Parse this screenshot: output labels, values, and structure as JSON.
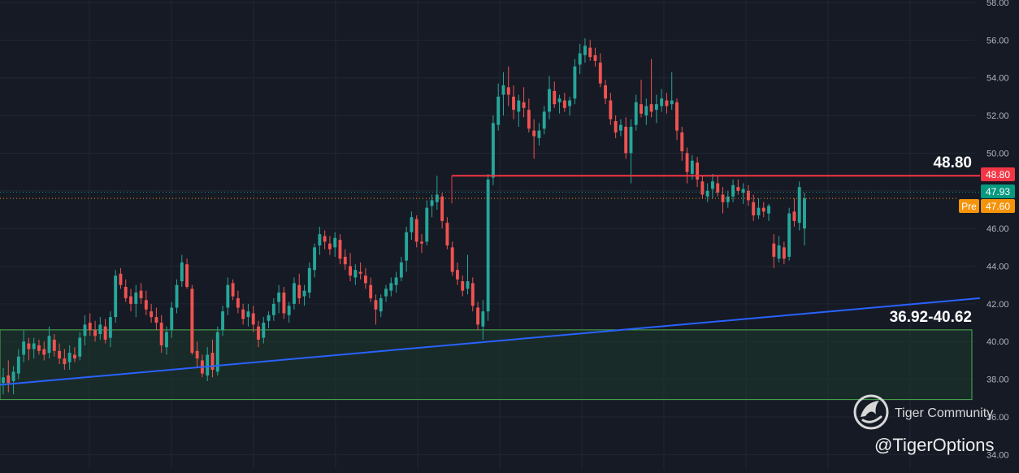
{
  "chart_data": {
    "type": "candlestick",
    "y_axis": {
      "ticks": [
        "34.00",
        "36.00",
        "38.00",
        "40.00",
        "42.00",
        "44.00",
        "46.00",
        "48.00",
        "50.00",
        "52.00",
        "54.00",
        "56.00",
        "58.00"
      ],
      "min": 34,
      "max": 58,
      "position": "right"
    },
    "grid": true,
    "price_labels": {
      "resistance": "48.80",
      "last": "47.93",
      "premarket_tag": "Pre",
      "premarket": "47.60"
    },
    "annotations": {
      "resistance_label": "48.80",
      "support_zone_label": "36.92-40.62"
    },
    "resistance_level": 48.8,
    "support_zone": [
      36.92,
      40.62
    ],
    "trendline": {
      "start_price": 37.7,
      "end_price": 42.3
    },
    "candles": [
      [
        37.8,
        38.6,
        37.2,
        38.1
      ],
      [
        38.2,
        39.0,
        37.3,
        37.8
      ],
      [
        37.9,
        38.7,
        37.2,
        38.4
      ],
      [
        38.3,
        39.6,
        38.0,
        39.2
      ],
      [
        39.3,
        40.6,
        38.9,
        40.0
      ],
      [
        39.9,
        40.2,
        39.0,
        39.6
      ],
      [
        39.6,
        40.2,
        39.1,
        39.9
      ],
      [
        39.8,
        40.1,
        39.3,
        39.5
      ],
      [
        39.6,
        40.0,
        39.0,
        39.3
      ],
      [
        39.4,
        40.8,
        39.1,
        40.3
      ],
      [
        40.1,
        40.4,
        39.2,
        39.5
      ],
      [
        39.5,
        39.9,
        38.8,
        39.1
      ],
      [
        39.1,
        39.6,
        38.5,
        38.8
      ],
      [
        38.9,
        39.8,
        38.5,
        39.4
      ],
      [
        39.3,
        39.7,
        38.9,
        39.1
      ],
      [
        39.2,
        40.5,
        39.0,
        40.2
      ],
      [
        40.3,
        41.4,
        39.8,
        40.9
      ],
      [
        41.0,
        41.5,
        40.3,
        40.6
      ],
      [
        40.6,
        41.1,
        40.0,
        40.3
      ],
      [
        40.4,
        41.3,
        40.1,
        40.9
      ],
      [
        40.8,
        41.2,
        39.9,
        40.1
      ],
      [
        40.2,
        41.6,
        39.7,
        41.3
      ],
      [
        41.3,
        43.8,
        41.0,
        43.5
      ],
      [
        43.6,
        43.9,
        42.8,
        43.0
      ],
      [
        42.9,
        43.3,
        42.1,
        42.3
      ],
      [
        42.4,
        42.8,
        41.6,
        42.0
      ],
      [
        42.0,
        43.0,
        41.3,
        42.6
      ],
      [
        42.7,
        43.1,
        42.0,
        42.3
      ],
      [
        42.2,
        42.7,
        41.4,
        41.7
      ],
      [
        41.6,
        42.0,
        41.0,
        41.3
      ],
      [
        41.3,
        41.8,
        40.6,
        41.0
      ],
      [
        41.0,
        41.4,
        39.4,
        39.8
      ],
      [
        39.7,
        40.8,
        39.3,
        40.5
      ],
      [
        40.6,
        42.1,
        40.2,
        41.8
      ],
      [
        41.8,
        43.3,
        41.5,
        43.0
      ],
      [
        43.2,
        44.6,
        42.9,
        44.2
      ],
      [
        44.1,
        44.4,
        42.8,
        42.9
      ],
      [
        42.8,
        43.0,
        39.3,
        39.4
      ],
      [
        39.5,
        40.0,
        38.6,
        39.1
      ],
      [
        39.0,
        39.3,
        38.1,
        38.3
      ],
      [
        38.2,
        39.7,
        37.9,
        39.3
      ],
      [
        39.4,
        40.1,
        38.1,
        38.5
      ],
      [
        38.4,
        40.8,
        38.2,
        40.5
      ],
      [
        40.6,
        41.9,
        40.3,
        41.6
      ],
      [
        41.8,
        43.4,
        41.4,
        43.0
      ],
      [
        43.1,
        43.3,
        42.2,
        42.4
      ],
      [
        42.3,
        42.7,
        41.5,
        41.8
      ],
      [
        41.7,
        42.0,
        40.9,
        41.2
      ],
      [
        41.3,
        42.0,
        40.8,
        41.6
      ],
      [
        41.5,
        41.9,
        40.5,
        40.9
      ],
      [
        40.8,
        41.1,
        39.7,
        40.1
      ],
      [
        40.2,
        41.3,
        39.9,
        41.0
      ],
      [
        41.1,
        41.6,
        40.7,
        41.4
      ],
      [
        41.4,
        42.3,
        41.1,
        42.0
      ],
      [
        42.1,
        43.0,
        41.5,
        42.6
      ],
      [
        42.6,
        42.9,
        41.2,
        41.5
      ],
      [
        41.4,
        42.1,
        41.0,
        41.9
      ],
      [
        42.0,
        43.4,
        41.7,
        43.1
      ],
      [
        43.0,
        43.6,
        42.0,
        42.3
      ],
      [
        42.4,
        43.0,
        41.9,
        42.7
      ],
      [
        42.6,
        44.2,
        42.3,
        43.9
      ],
      [
        43.8,
        45.2,
        43.4,
        45.0
      ],
      [
        45.1,
        46.1,
        44.6,
        45.7
      ],
      [
        45.6,
        45.9,
        44.9,
        45.3
      ],
      [
        45.2,
        45.6,
        44.6,
        44.9
      ],
      [
        45.0,
        45.8,
        44.5,
        45.5
      ],
      [
        45.4,
        45.7,
        44.1,
        44.4
      ],
      [
        44.5,
        44.9,
        43.8,
        44.1
      ],
      [
        44.0,
        44.7,
        43.2,
        43.5
      ],
      [
        43.4,
        44.1,
        43.0,
        43.8
      ],
      [
        43.7,
        44.2,
        43.3,
        43.6
      ],
      [
        43.5,
        43.9,
        42.8,
        43.1
      ],
      [
        43.0,
        43.4,
        42.1,
        42.3
      ],
      [
        42.2,
        42.5,
        40.9,
        41.7
      ],
      [
        41.6,
        42.5,
        41.3,
        42.3
      ],
      [
        42.4,
        43.0,
        42.1,
        42.8
      ],
      [
        42.7,
        43.4,
        42.4,
        43.1
      ],
      [
        43.0,
        43.7,
        42.6,
        43.4
      ],
      [
        43.4,
        44.5,
        43.2,
        44.2
      ],
      [
        44.3,
        46.1,
        43.7,
        45.8
      ],
      [
        45.8,
        46.9,
        45.4,
        46.6
      ],
      [
        46.5,
        46.7,
        45.0,
        45.3
      ],
      [
        45.3,
        45.7,
        44.7,
        45.2
      ],
      [
        45.3,
        47.5,
        45.1,
        47.1
      ],
      [
        47.2,
        47.8,
        46.6,
        47.5
      ],
      [
        47.4,
        48.8,
        47.0,
        47.8
      ],
      [
        47.7,
        47.9,
        46.0,
        46.4
      ],
      [
        46.3,
        46.6,
        44.9,
        45.1
      ],
      [
        45.0,
        45.3,
        43.5,
        43.7
      ],
      [
        43.8,
        44.2,
        43.0,
        43.3
      ],
      [
        43.2,
        43.5,
        42.4,
        42.7
      ],
      [
        42.8,
        44.6,
        42.5,
        43.2
      ],
      [
        43.1,
        43.4,
        41.6,
        41.9
      ],
      [
        41.8,
        42.1,
        40.6,
        40.9
      ],
      [
        40.8,
        42.2,
        40.1,
        41.6
      ],
      [
        41.6,
        48.9,
        41.1,
        48.6
      ],
      [
        48.7,
        52.0,
        48.3,
        51.6
      ],
      [
        51.5,
        53.7,
        51.2,
        53.0
      ],
      [
        53.1,
        54.3,
        52.0,
        53.6
      ],
      [
        53.5,
        54.6,
        52.5,
        53.1
      ],
      [
        53.0,
        53.6,
        51.8,
        52.3
      ],
      [
        52.2,
        53.1,
        51.4,
        52.8
      ],
      [
        52.7,
        53.5,
        51.9,
        52.4
      ],
      [
        52.3,
        52.9,
        51.1,
        51.3
      ],
      [
        51.2,
        51.8,
        49.7,
        50.9
      ],
      [
        50.8,
        51.6,
        50.4,
        51.2
      ],
      [
        51.3,
        52.5,
        51.0,
        52.2
      ],
      [
        52.2,
        54.1,
        51.8,
        53.4
      ],
      [
        53.3,
        53.8,
        52.4,
        52.6
      ],
      [
        52.7,
        53.1,
        52.1,
        52.9
      ],
      [
        52.8,
        53.2,
        52.2,
        52.4
      ],
      [
        52.5,
        53.0,
        52.0,
        52.8
      ],
      [
        52.9,
        55.0,
        52.6,
        54.6
      ],
      [
        54.7,
        55.8,
        54.2,
        55.3
      ],
      [
        55.2,
        56.1,
        54.8,
        55.7
      ],
      [
        55.6,
        56.0,
        54.9,
        55.1
      ],
      [
        55.2,
        55.6,
        54.6,
        54.9
      ],
      [
        54.8,
        55.3,
        53.5,
        53.7
      ],
      [
        53.6,
        53.9,
        52.6,
        52.9
      ],
      [
        52.8,
        53.2,
        51.5,
        51.8
      ],
      [
        51.7,
        52.0,
        50.8,
        51.1
      ],
      [
        51.2,
        51.8,
        50.9,
        51.5
      ],
      [
        51.4,
        51.9,
        49.7,
        50.0
      ],
      [
        50.0,
        51.8,
        48.4,
        51.4
      ],
      [
        51.5,
        53.1,
        51.2,
        52.7
      ],
      [
        52.6,
        53.9,
        51.9,
        52.1
      ],
      [
        52.0,
        52.9,
        51.5,
        52.5
      ],
      [
        52.6,
        55.0,
        51.9,
        52.2
      ],
      [
        52.3,
        53.1,
        51.6,
        52.6
      ],
      [
        52.5,
        53.4,
        52.2,
        52.9
      ],
      [
        52.8,
        53.2,
        52.1,
        52.5
      ],
      [
        52.6,
        54.3,
        52.3,
        52.8
      ],
      [
        52.7,
        52.9,
        50.7,
        51.2
      ],
      [
        51.1,
        51.4,
        49.6,
        50.1
      ],
      [
        50.0,
        50.3,
        48.4,
        49.0
      ],
      [
        48.9,
        49.9,
        48.6,
        49.6
      ],
      [
        49.5,
        49.8,
        48.2,
        48.6
      ],
      [
        48.5,
        48.8,
        47.6,
        47.8
      ],
      [
        47.7,
        48.4,
        47.4,
        48.0
      ],
      [
        48.1,
        48.9,
        47.6,
        48.5
      ],
      [
        48.4,
        48.8,
        47.7,
        47.9
      ],
      [
        47.8,
        48.2,
        46.8,
        47.4
      ],
      [
        47.4,
        48.0,
        47.1,
        47.7
      ],
      [
        47.7,
        48.6,
        47.4,
        48.3
      ],
      [
        48.2,
        48.6,
        47.8,
        48.0
      ],
      [
        47.9,
        48.4,
        47.3,
        48.1
      ],
      [
        48.0,
        48.3,
        47.2,
        47.5
      ],
      [
        47.4,
        47.8,
        46.4,
        46.7
      ],
      [
        46.7,
        47.6,
        46.5,
        47.1
      ],
      [
        47.1,
        47.4,
        46.6,
        46.9
      ],
      [
        46.8,
        47.3,
        46.4,
        47.2
      ],
      [
        45.2,
        45.7,
        43.9,
        44.5
      ],
      [
        44.4,
        45.6,
        44.2,
        45.1
      ],
      [
        45.0,
        45.3,
        44.1,
        44.4
      ],
      [
        44.5,
        47.1,
        44.3,
        46.8
      ],
      [
        46.9,
        47.6,
        46.1,
        46.4
      ],
      [
        46.3,
        48.5,
        45.9,
        48.2
      ],
      [
        46.0,
        47.9,
        45.1,
        47.6
      ]
    ]
  },
  "watermark": {
    "brand": "Tiger Community",
    "handle": "@TigerOptions"
  },
  "colors": {
    "background": "#161a25",
    "grid": "#222632",
    "up": "#26a69a",
    "down": "#ef5350",
    "resistance": "#f23645",
    "trendline": "#2962ff",
    "zone_border": "#4caf50",
    "zone_fill": "#1e3b2c",
    "last_price": "#089981",
    "premarket": "#f5930b",
    "axis_text": "#b2b5be"
  }
}
